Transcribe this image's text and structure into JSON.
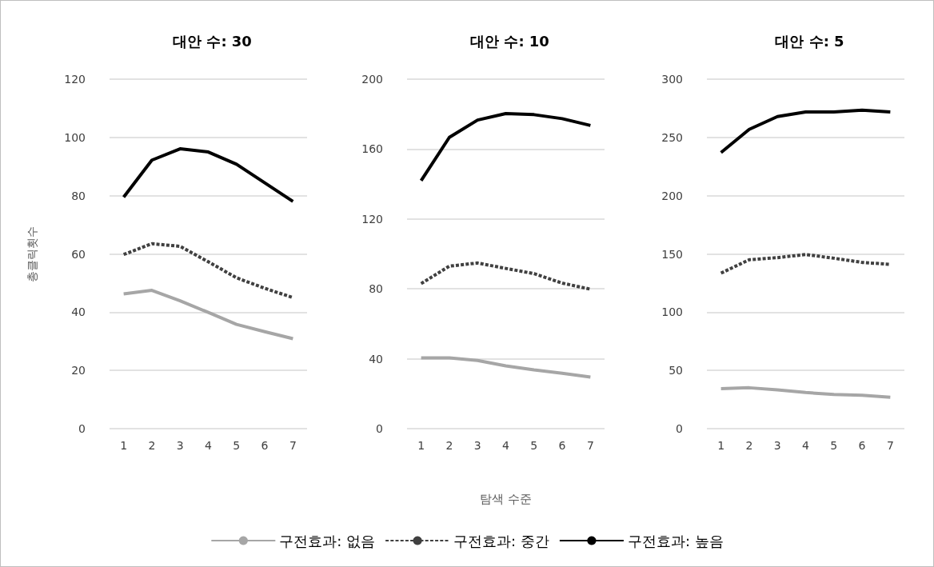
{
  "chart_data": [
    {
      "type": "line",
      "title": "대안 수: 30",
      "ylabel": "총클릭횟수",
      "categories": [
        "1",
        "2",
        "3",
        "4",
        "5",
        "6",
        "7"
      ],
      "ylim": [
        0,
        120
      ],
      "yticks": [
        0,
        20,
        40,
        60,
        80,
        100,
        120
      ],
      "grid": "y",
      "series": [
        {
          "color": "#a6a6a6",
          "line_style": "solid",
          "values": [
            46.3,
            47.5,
            43.9,
            39.9,
            35.8,
            33.3,
            30.9
          ]
        },
        {
          "color": "#404040",
          "line_style": "dashed",
          "values": [
            59.8,
            63.5,
            62.6,
            57.3,
            51.8,
            48.2,
            45
          ]
        },
        {
          "color": "#000000",
          "line_style": "solid",
          "values": [
            79.5,
            92.2,
            96.1,
            95,
            90.8,
            84.4,
            78
          ]
        }
      ]
    },
    {
      "type": "line",
      "title": "대안 수: 10",
      "xlabel": "탐색 수준",
      "legend": "bottom",
      "categories": [
        "1",
        "2",
        "3",
        "4",
        "5",
        "6",
        "7"
      ],
      "ylim": [
        0,
        200
      ],
      "yticks": [
        0,
        40,
        80,
        120,
        160,
        200
      ],
      "grid": "y",
      "series": [
        {
          "name": "구전효과: 없음",
          "color": "#a6a6a6",
          "line_style": "solid",
          "values": [
            40.5,
            40.5,
            39,
            35.9,
            33.6,
            31.7,
            29.5
          ]
        },
        {
          "name": "구전효과: 중간",
          "color": "#404040",
          "line_style": "dashed",
          "values": [
            83,
            93,
            94.8,
            91.7,
            88.7,
            83.3,
            79.8
          ]
        },
        {
          "name": "구전효과: 높음",
          "color": "#000000",
          "line_style": "solid",
          "values": [
            141.9,
            166.7,
            176.6,
            180.3,
            179.7,
            177.4,
            173.5
          ]
        }
      ]
    },
    {
      "type": "line",
      "title": "대안 수: 5",
      "categories": [
        "1",
        "2",
        "3",
        "4",
        "5",
        "6",
        "7"
      ],
      "ylim": [
        0,
        300
      ],
      "yticks": [
        0,
        50,
        100,
        150,
        200,
        250,
        300
      ],
      "grid": "y",
      "series": [
        {
          "color": "#a6a6a6",
          "line_style": "solid",
          "values": [
            34.4,
            35.1,
            33.3,
            31,
            29.4,
            28.7,
            27
          ]
        },
        {
          "color": "#404040",
          "line_style": "dashed",
          "values": [
            133.5,
            145,
            146.8,
            149.5,
            146.3,
            142.7,
            141
          ]
        },
        {
          "color": "#000000",
          "line_style": "solid",
          "values": [
            237,
            256.9,
            267.9,
            271.8,
            271.8,
            273.4,
            271.8
          ]
        }
      ]
    }
  ]
}
